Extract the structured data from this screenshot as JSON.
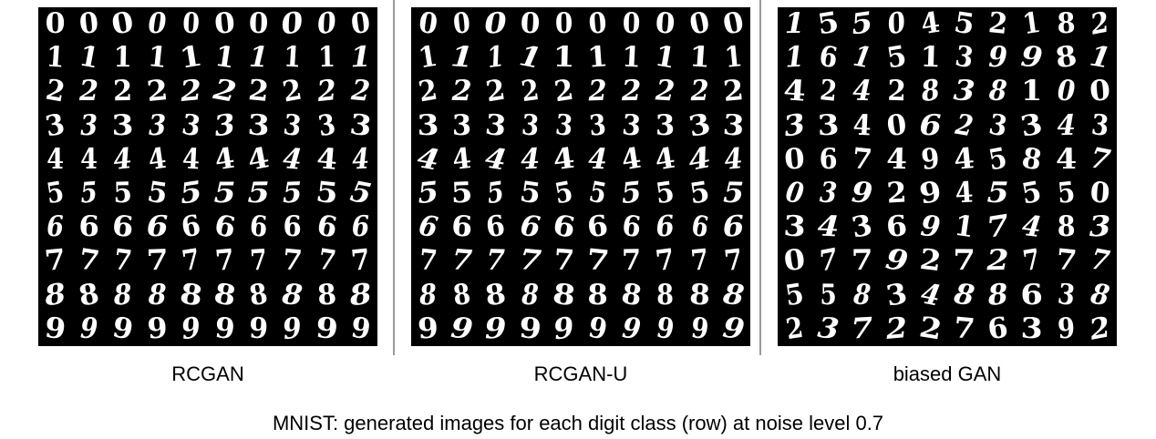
{
  "panels": [
    {
      "label": "RCGAN"
    },
    {
      "label": "RCGAN-U"
    },
    {
      "label": "biased GAN"
    }
  ],
  "footer": "MNIST: generated images for each digit class (row) at noise level 0.7",
  "digit_rows_conditional": [
    "0000000000",
    "1111111111",
    "2222222222",
    "3333333333",
    "4444444444",
    "5555555555",
    "6666666666",
    "7777777777",
    "8888888888",
    "9999999999"
  ],
  "digit_rows_biased": [
    "1550452182",
    "1615139981",
    "4242838100",
    "3340623343",
    "0674945847",
    "0392945550",
    "3436917483",
    "0779272777",
    "5583488638",
    "2372276392"
  ]
}
